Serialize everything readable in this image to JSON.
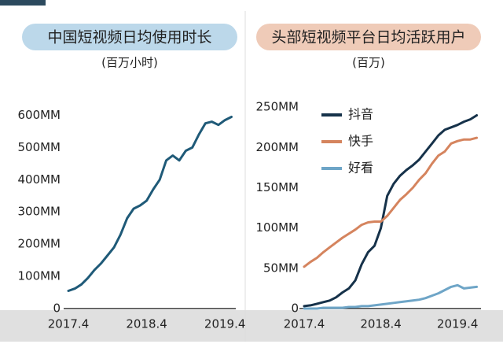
{
  "chart_data": [
    {
      "type": "line",
      "title": "中国短视频日均使用时长",
      "subtitle": "(百万小时)",
      "x": [
        "2017.4",
        null,
        null,
        null,
        null,
        null,
        null,
        null,
        null,
        null,
        null,
        null,
        "2018.4",
        null,
        null,
        null,
        null,
        null,
        null,
        null,
        null,
        null,
        null,
        null,
        "2019.4",
        null
      ],
      "series": [
        {
          "name": null,
          "color": "#1f5a78",
          "values": [
            55,
            62,
            75,
            95,
            120,
            140,
            165,
            190,
            230,
            280,
            310,
            320,
            335,
            370,
            400,
            460,
            475,
            460,
            490,
            500,
            540,
            575,
            580,
            570,
            585,
            595
          ]
        }
      ],
      "ylim": [
        0,
        650
      ],
      "yticks": [
        0,
        {
          "value": 100,
          "label": "100MM"
        },
        {
          "value": 200,
          "label": "200MM"
        },
        {
          "value": 300,
          "label": "300MM"
        },
        {
          "value": 400,
          "label": "400MM"
        },
        {
          "value": 500,
          "label": "500MM"
        },
        {
          "value": 600,
          "label": "600MM"
        }
      ],
      "title_color": "#bcd8ea"
    },
    {
      "type": "line",
      "title": "头部短视频平台日均活跃用户",
      "subtitle": "(百万)",
      "x": [
        "2017.4",
        null,
        null,
        null,
        null,
        null,
        null,
        null,
        null,
        null,
        null,
        null,
        "2018.4",
        null,
        null,
        null,
        null,
        null,
        null,
        null,
        null,
        null,
        null,
        null,
        "2019.4",
        null,
        null,
        null
      ],
      "series": [
        {
          "name": "抖音",
          "color": "#16324a",
          "values": [
            3,
            4,
            6,
            8,
            10,
            14,
            20,
            25,
            35,
            55,
            70,
            78,
            100,
            140,
            155,
            165,
            172,
            178,
            185,
            195,
            205,
            215,
            222,
            225,
            228,
            232,
            235,
            240
          ]
        },
        {
          "name": "快手",
          "color": "#d5845e",
          "values": [
            52,
            58,
            63,
            70,
            76,
            82,
            88,
            93,
            98,
            104,
            107,
            108,
            108,
            115,
            125,
            135,
            142,
            150,
            160,
            168,
            180,
            190,
            195,
            205,
            208,
            210,
            210,
            212
          ]
        },
        {
          "name": "好看",
          "color": "#6ea5c7",
          "values": [
            0,
            0,
            0,
            1,
            1,
            1,
            1,
            2,
            2,
            3,
            3,
            4,
            5,
            6,
            7,
            8,
            9,
            10,
            11,
            13,
            16,
            19,
            23,
            27,
            29,
            25,
            26,
            27
          ]
        }
      ],
      "ylim": [
        0,
        260
      ],
      "yticks": [
        0,
        {
          "value": 50,
          "label": "50MM"
        },
        {
          "value": 100,
          "label": "100MM"
        },
        {
          "value": 150,
          "label": "150MM"
        },
        {
          "value": 200,
          "label": "200MM"
        },
        {
          "value": 250,
          "label": "250MM"
        }
      ],
      "legend": "upper left",
      "title_color": "#efcbb8"
    }
  ]
}
